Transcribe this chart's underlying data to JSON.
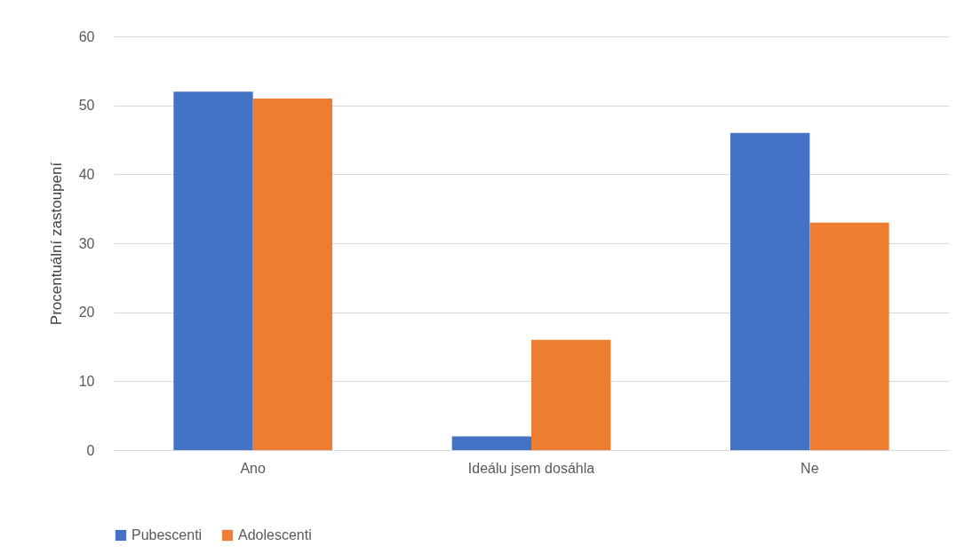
{
  "chart_data": {
    "type": "bar",
    "ylabel": "Procentuální zastoupení",
    "categories": [
      "Ano",
      "Ideálu jsem dosáhla",
      "Ne"
    ],
    "series": [
      {
        "name": "Pubescenti",
        "color": "#4472c4",
        "values": [
          52,
          2,
          46
        ]
      },
      {
        "name": "Adolescenti",
        "color": "#ed7d31",
        "values": [
          51,
          16,
          33
        ]
      }
    ],
    "ylim": [
      0,
      60
    ],
    "yticks": [
      0,
      10,
      20,
      30,
      40,
      50,
      60
    ],
    "grid": "y",
    "legend": "bottom"
  }
}
